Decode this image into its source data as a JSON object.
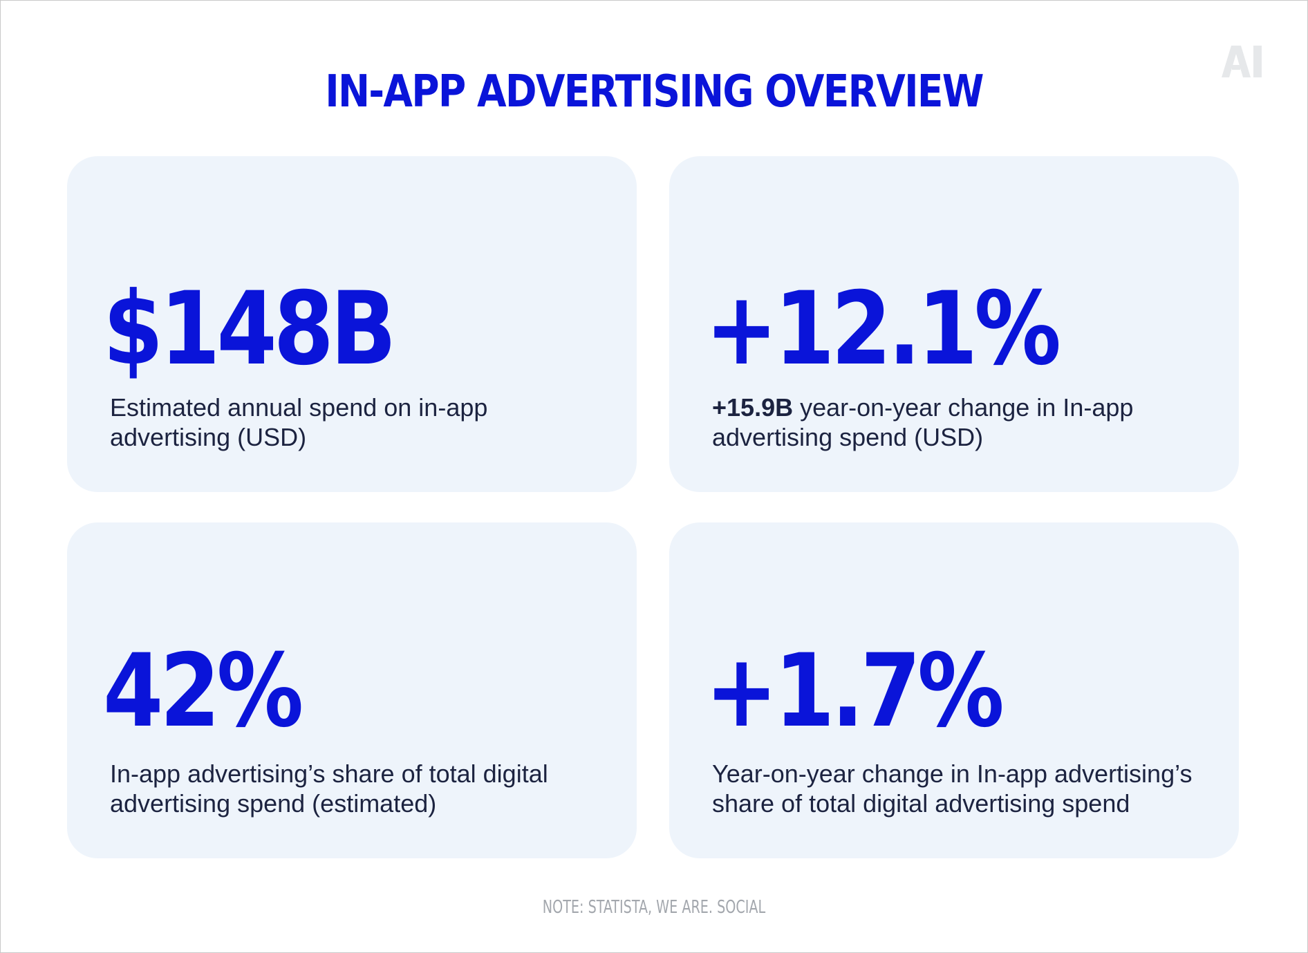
{
  "header": {
    "title": "IN-APP ADVERTISING OVERVIEW",
    "logo_text": "AI"
  },
  "cards": [
    {
      "stat": "$148B",
      "desc_strong": "",
      "desc": "Estimated annual spend on in-app advertising (USD)"
    },
    {
      "stat": "+12.1%",
      "desc_strong": "+15.9B",
      "desc": " year-on-year change in In-app advertising spend (USD)"
    },
    {
      "stat": "42%",
      "desc_strong": "",
      "desc": "In-app advertising’s share of total digital advertising spend (estimated)"
    },
    {
      "stat": "+1.7%",
      "desc_strong": "",
      "desc": "Year-on-year change in In-app advertising’s share of total digital advertising spend"
    }
  ],
  "footer": {
    "note": "NOTE: STATISTA, WE ARE. SOCIAL"
  },
  "colors": {
    "accent": "#0a14d9",
    "card_bg": "#eef4fb",
    "text": "#1c2340",
    "note": "#a3a7ad",
    "logo": "#e6e8ea"
  }
}
